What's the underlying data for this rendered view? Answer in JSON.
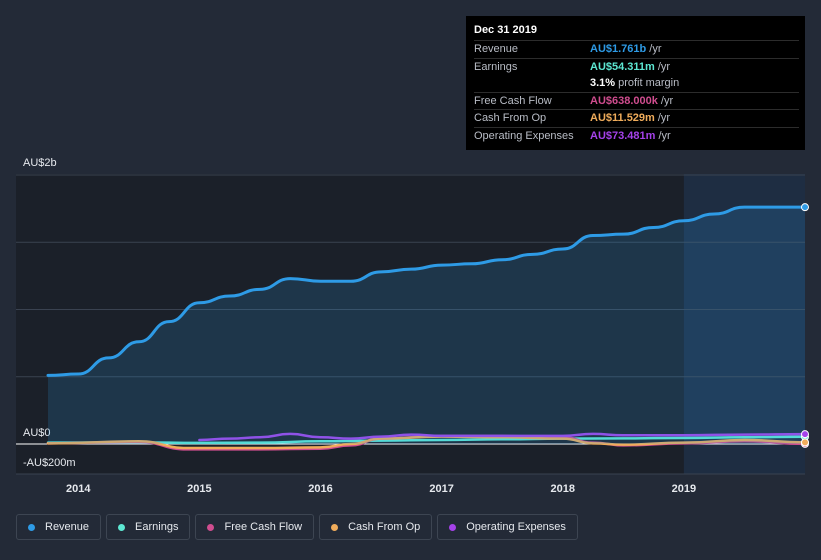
{
  "chart_data": {
    "type": "line",
    "title": "",
    "xlabel": "",
    "ylabel": "",
    "ylim": [
      -200,
      2000
    ],
    "y_tick_labels": [
      "AU$2b",
      "AU$0",
      "-AU$200m"
    ],
    "x_ticks": [
      "2014",
      "2015",
      "2016",
      "2017",
      "2018",
      "2019"
    ],
    "x_range": [
      2013.75,
      2020.0
    ],
    "forecast_start": 2019.0,
    "series": [
      {
        "name": "Revenue",
        "color": "#2e9be6",
        "filled": true,
        "x": [
          2013.75,
          2014.0,
          2014.25,
          2014.5,
          2014.75,
          2015.0,
          2015.25,
          2015.5,
          2015.75,
          2016.0,
          2016.25,
          2016.5,
          2016.75,
          2017.0,
          2017.25,
          2017.5,
          2017.75,
          2018.0,
          2018.25,
          2018.5,
          2018.75,
          2019.0,
          2019.25,
          2019.5,
          2019.75,
          2020.0
        ],
        "values": [
          510,
          520,
          640,
          760,
          910,
          1050,
          1100,
          1150,
          1230,
          1210,
          1210,
          1280,
          1300,
          1330,
          1340,
          1370,
          1410,
          1450,
          1550,
          1560,
          1610,
          1660,
          1710,
          1761,
          1761,
          1761
        ]
      },
      {
        "name": "Earnings",
        "color": "#5de8d3",
        "x": [
          2013.75,
          2014.5,
          2015.0,
          2015.5,
          2016.0,
          2016.5,
          2017.0,
          2017.5,
          2018.0,
          2018.5,
          2019.0,
          2019.5,
          2020.0
        ],
        "values": [
          10,
          12,
          8,
          10,
          20,
          25,
          30,
          35,
          40,
          42,
          45,
          50,
          54
        ]
      },
      {
        "name": "Free Cash Flow",
        "color": "#d04d8f",
        "x": [
          2013.75,
          2014.5,
          2014.9,
          2015.5,
          2016.0,
          2016.25,
          2016.5,
          2017.0,
          2017.5,
          2018.0,
          2018.25,
          2018.5,
          2019.0,
          2019.5,
          2020.0
        ],
        "values": [
          5,
          15,
          -40,
          -40,
          -35,
          -10,
          40,
          60,
          60,
          50,
          10,
          -10,
          5,
          20,
          1
        ]
      },
      {
        "name": "Cash From Op",
        "color": "#f0ac5b",
        "x": [
          2013.75,
          2014.5,
          2014.9,
          2015.5,
          2016.0,
          2016.25,
          2016.5,
          2017.0,
          2017.5,
          2018.0,
          2018.25,
          2018.5,
          2019.0,
          2019.5,
          2020.0
        ],
        "values": [
          5,
          20,
          -30,
          -30,
          -25,
          0,
          40,
          55,
          50,
          40,
          5,
          -5,
          10,
          30,
          12
        ]
      },
      {
        "name": "Operating Expenses",
        "color": "#a542ea",
        "x": [
          2015.0,
          2015.25,
          2015.5,
          2015.75,
          2016.0,
          2016.25,
          2016.5,
          2016.75,
          2017.0,
          2017.5,
          2018.0,
          2018.25,
          2018.5,
          2019.0,
          2019.5,
          2020.0
        ],
        "values": [
          30,
          40,
          50,
          75,
          50,
          40,
          55,
          70,
          60,
          60,
          60,
          75,
          65,
          65,
          70,
          73
        ]
      }
    ]
  },
  "tooltip": {
    "date": "Dec 31 2019",
    "rows": [
      {
        "name": "Revenue",
        "value": "AU$1.761b",
        "unit": "/yr",
        "color": "#2e9be6"
      },
      {
        "name": "Earnings",
        "value": "AU$54.311m",
        "unit": "/yr",
        "color": "#5de8d3"
      },
      {
        "name": "",
        "value": "3.1%",
        "unit": "profit margin",
        "color": "#ffffff"
      },
      {
        "name": "Free Cash Flow",
        "value": "AU$638.000k",
        "unit": "/yr",
        "color": "#d04d8f"
      },
      {
        "name": "Cash From Op",
        "value": "AU$11.529m",
        "unit": "/yr",
        "color": "#f0ac5b"
      },
      {
        "name": "Operating Expenses",
        "value": "AU$73.481m",
        "unit": "/yr",
        "color": "#a542ea"
      }
    ]
  },
  "legend": [
    {
      "label": "Revenue",
      "color": "#2e9be6"
    },
    {
      "label": "Earnings",
      "color": "#5de8d3"
    },
    {
      "label": "Free Cash Flow",
      "color": "#d04d8f"
    },
    {
      "label": "Cash From Op",
      "color": "#f0ac5b"
    },
    {
      "label": "Operating Expenses",
      "color": "#a542ea"
    }
  ]
}
